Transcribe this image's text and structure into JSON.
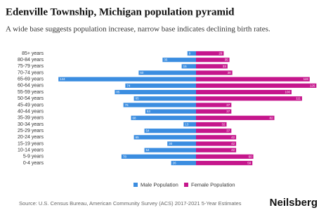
{
  "chart_data": {
    "type": "pyramid",
    "title": "Edenville Township, Michigan population pyramid",
    "subtitle": "A wide base suggests population increase, narrow base indicates declining birth rates.",
    "categories": [
      "85+ years",
      "80-84 years",
      "75-79 years",
      "70-74 years",
      "65-69 years",
      "60-64 years",
      "55-59 years",
      "50-54 years",
      "45-49 years",
      "40-44 years",
      "35-39 years",
      "30-34 years",
      "25-29 years",
      "20-24 years",
      "15-19 years",
      "10-14 years",
      "5-9 years",
      "0-4 years"
    ],
    "series": [
      {
        "name": "Male Population",
        "color": "#3b8de0",
        "values": [
          9,
          35,
          15,
          60,
          144,
          74,
          85,
          65,
          76,
          53,
          68,
          13,
          54,
          65,
          30,
          54,
          78,
          26
        ]
      },
      {
        "name": "Female Population",
        "color": "#c5168c",
        "values": [
          29,
          35,
          33,
          38,
          119,
          126,
          100,
          111,
          37,
          37,
          82,
          32,
          37,
          42,
          42,
          42,
          60,
          59
        ]
      }
    ]
  },
  "footer": {
    "source": "Source: U.S. Census Bureau, American Community Survey (ACS) 2017-2021 5-Year Estimates",
    "brand": "Neilsberg"
  }
}
